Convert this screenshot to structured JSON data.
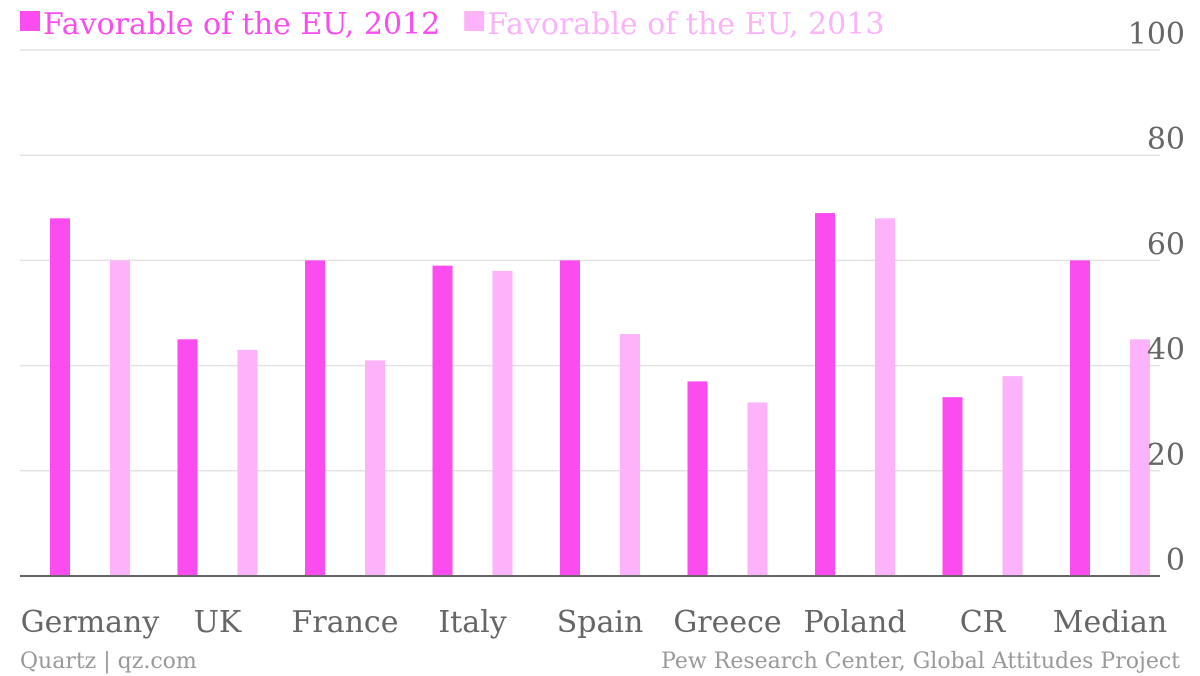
{
  "chart_data": {
    "type": "bar",
    "categories": [
      "Germany",
      "UK",
      "France",
      "Italy",
      "Spain",
      "Greece",
      "Poland",
      "CR",
      "Median"
    ],
    "series": [
      {
        "name": "Favorable of the EU, 2012",
        "color": "#fb4cf0",
        "values": [
          68,
          45,
          60,
          59,
          60,
          37,
          69,
          34,
          60
        ]
      },
      {
        "name": "Favorable of the EU, 2013",
        "color": "#fcb3fa",
        "values": [
          60,
          43,
          41,
          58,
          46,
          33,
          68,
          38,
          45
        ]
      }
    ],
    "ylim": [
      0,
      100
    ],
    "yticks": [
      0,
      20,
      40,
      60,
      80,
      100
    ],
    "grid": true,
    "legend_placement": "top-left",
    "axis_side": "right"
  },
  "footer": {
    "left": "Quartz | qz.com",
    "right": "Pew Research Center, Global Attitudes Project"
  }
}
